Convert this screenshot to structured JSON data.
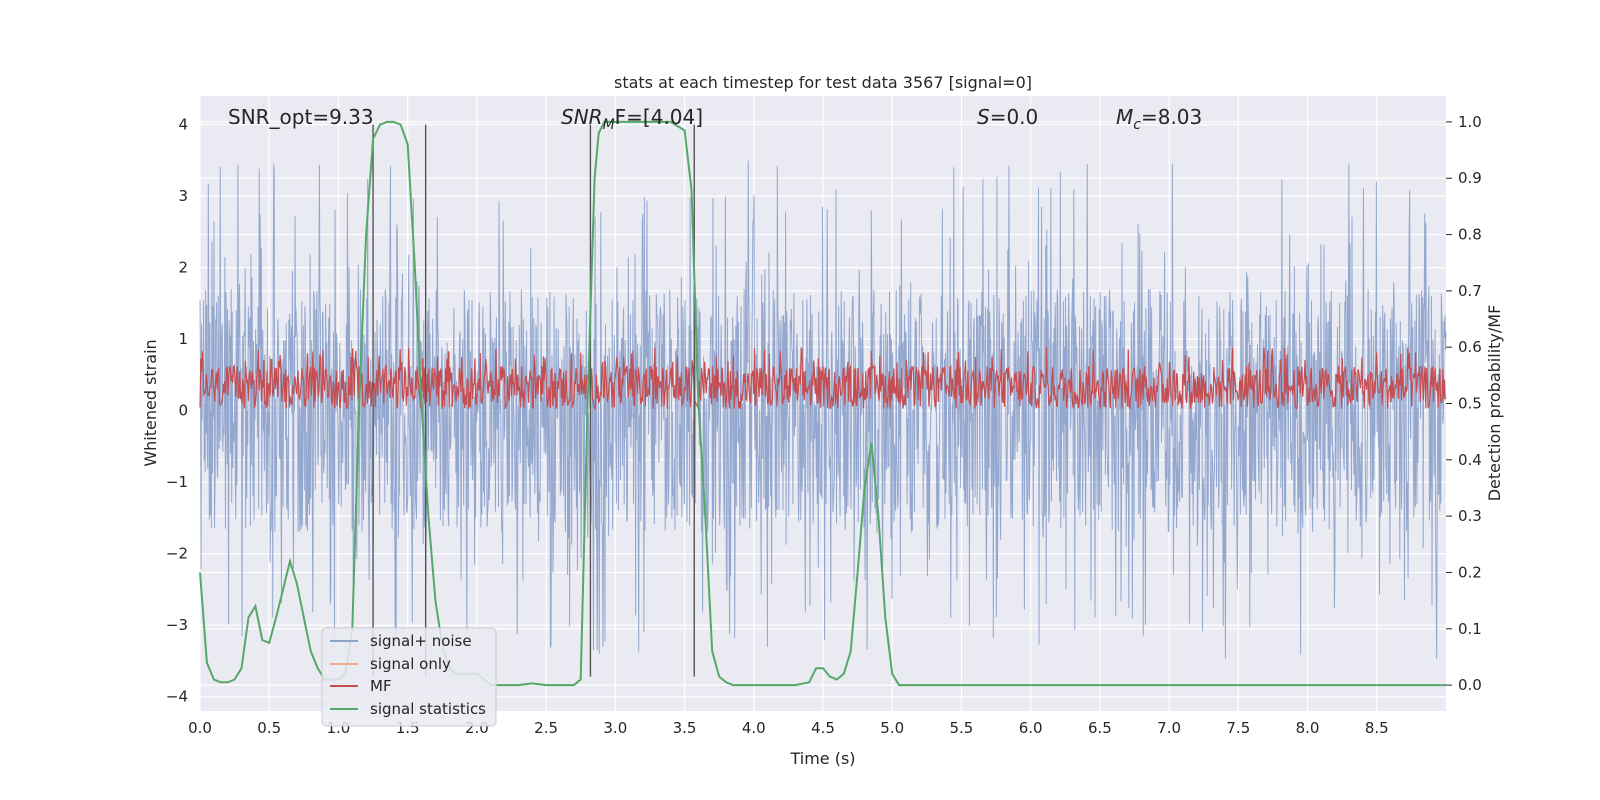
{
  "chart_data": {
    "type": "line",
    "title": "stats at each timestep for test data 3567 [signal=0]",
    "xlabel": "Time (s)",
    "ylabel": "Whitened strain",
    "ylabel_right": "Detection probability/MF",
    "xlim": [
      0,
      9
    ],
    "ylim": [
      -4.2,
      4.4
    ],
    "ylim_right": [
      -0.046,
      1.046
    ],
    "x_ticks": [
      0.0,
      0.5,
      1.0,
      1.5,
      2.0,
      2.5,
      3.0,
      3.5,
      4.0,
      4.5,
      5.0,
      5.5,
      6.0,
      6.5,
      7.0,
      7.5,
      8.0,
      8.5
    ],
    "x_tick_labels": [
      "0.0",
      "0.5",
      "1.0",
      "1.5",
      "2.0",
      "2.5",
      "3.0",
      "3.5",
      "4.0",
      "4.5",
      "5.0",
      "5.5",
      "6.0",
      "6.5",
      "7.0",
      "7.5",
      "8.0",
      "8.5"
    ],
    "y_ticks": [
      4,
      3,
      2,
      1,
      0,
      -1,
      -2,
      -3,
      -4
    ],
    "y_tick_labels": [
      "4",
      "3",
      "2",
      "1",
      "0",
      "−1",
      "−2",
      "−3",
      "−4"
    ],
    "y_right_ticks": [
      1.0,
      0.9,
      0.8,
      0.7,
      0.6,
      0.5,
      0.4,
      0.3,
      0.2,
      0.1,
      0.0
    ],
    "y_right_tick_labels": [
      "1.0",
      "0.9",
      "0.8",
      "0.7",
      "0.6",
      "0.5",
      "0.4",
      "0.3",
      "0.2",
      "0.1",
      "0.0"
    ],
    "annotations": {
      "snr_opt": "SNR_opt=9.33",
      "snr_mf_sym": "SNR",
      "snr_mf_sub": "M",
      "snr_mf_rest": "F=[4.04]",
      "s_sym": "S",
      "s_rest": "=0.0",
      "mc_sym": "M",
      "mc_sub": "c",
      "mc_rest": "=8.03"
    },
    "vertical_lines": [
      1.25,
      1.63,
      2.82,
      3.57
    ],
    "series": [
      {
        "name": "signal+ noise",
        "color": "#8fa4cc",
        "axis": "left",
        "kind": "noise",
        "amplitude_typical": 1.7,
        "amplitude_peak": 3.5
      },
      {
        "name": "signal only",
        "color": "#f0a890",
        "axis": "left",
        "kind": "flat"
      },
      {
        "name": "MF",
        "color": "#c44e52",
        "axis": "right",
        "kind": "band",
        "range": [
          0.49,
          0.6
        ]
      },
      {
        "name": "signal statistics",
        "color": "#55a868",
        "axis": "right",
        "kind": "line",
        "x": [
          0.0,
          0.05,
          0.1,
          0.15,
          0.2,
          0.25,
          0.3,
          0.35,
          0.4,
          0.45,
          0.5,
          0.55,
          0.6,
          0.65,
          0.7,
          0.75,
          0.8,
          0.85,
          0.9,
          0.95,
          1.0,
          1.05,
          1.1,
          1.15,
          1.2,
          1.25,
          1.3,
          1.35,
          1.4,
          1.45,
          1.5,
          1.55,
          1.6,
          1.65,
          1.7,
          1.75,
          1.8,
          1.85,
          1.9,
          2.0,
          2.1,
          2.2,
          2.3,
          2.4,
          2.5,
          2.6,
          2.7,
          2.75,
          2.8,
          2.85,
          2.88,
          2.92,
          2.96,
          3.0,
          3.1,
          3.2,
          3.3,
          3.4,
          3.5,
          3.55,
          3.6,
          3.65,
          3.7,
          3.75,
          3.8,
          3.85,
          3.9,
          4.0,
          4.1,
          4.2,
          4.3,
          4.4,
          4.45,
          4.5,
          4.55,
          4.6,
          4.65,
          4.7,
          4.75,
          4.8,
          4.85,
          4.9,
          4.95,
          5.0,
          5.05,
          5.1,
          5.15,
          5.2,
          5.25,
          5.3,
          5.5,
          6.0,
          6.5,
          7.0,
          7.5,
          8.0,
          8.5,
          9.0
        ],
        "values": [
          0.2,
          0.04,
          0.01,
          0.005,
          0.005,
          0.01,
          0.03,
          0.12,
          0.14,
          0.08,
          0.075,
          0.12,
          0.17,
          0.22,
          0.18,
          0.12,
          0.06,
          0.03,
          0.01,
          0.01,
          0.01,
          0.02,
          0.1,
          0.5,
          0.8,
          0.97,
          0.995,
          1.0,
          1.0,
          0.995,
          0.96,
          0.75,
          0.5,
          0.3,
          0.15,
          0.07,
          0.03,
          0.02,
          0.02,
          0.02,
          0.0,
          0.0,
          0.0,
          0.003,
          0.0,
          0.0,
          0.0,
          0.01,
          0.5,
          0.9,
          0.98,
          1.0,
          1.0,
          1.0,
          1.0,
          1.0,
          1.0,
          1.0,
          0.985,
          0.88,
          0.5,
          0.3,
          0.06,
          0.015,
          0.005,
          0.0,
          0.0,
          0.0,
          0.0,
          0.0,
          0.0,
          0.005,
          0.03,
          0.03,
          0.015,
          0.01,
          0.02,
          0.06,
          0.2,
          0.35,
          0.43,
          0.3,
          0.12,
          0.02,
          0.0,
          0.0,
          0.0,
          0.0,
          0.0,
          0.0,
          0.0,
          0.0,
          0.0,
          0.0,
          0.0,
          0.0,
          0.0,
          0.0
        ]
      }
    ],
    "legend_location": "lower-left"
  }
}
